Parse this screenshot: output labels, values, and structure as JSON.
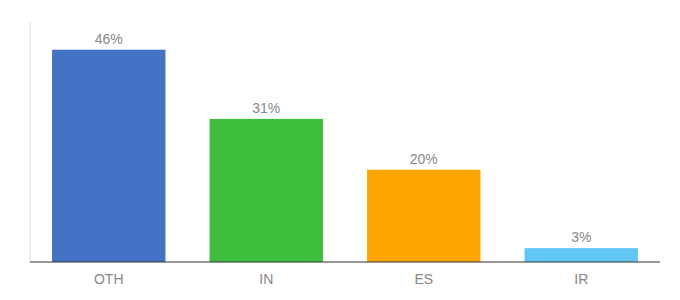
{
  "chart_data": {
    "type": "bar",
    "categories": [
      "OTH",
      "IN",
      "ES",
      "IR"
    ],
    "values": [
      46,
      31,
      20,
      3
    ],
    "value_labels": [
      "46%",
      "31%",
      "20%",
      "3%"
    ],
    "colors": [
      "#4472C4",
      "#3DBE3D",
      "#FFA500",
      "#62C6F5"
    ],
    "ylim": [
      0,
      52
    ],
    "data_labels": true,
    "tick_labels": "x"
  }
}
